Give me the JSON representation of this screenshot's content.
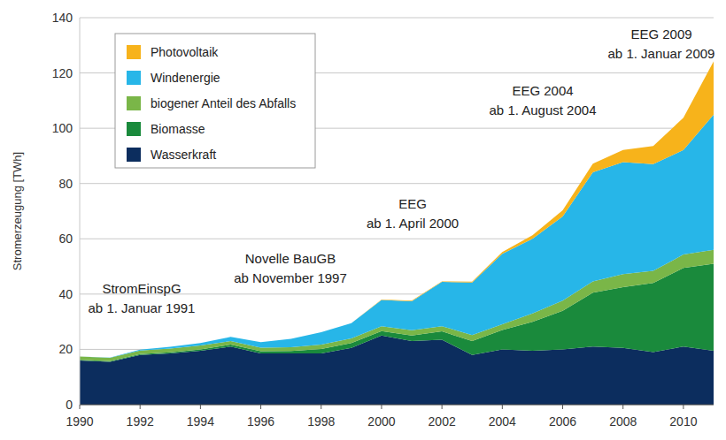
{
  "chart_data": {
    "type": "area",
    "stacked": true,
    "y_label": "Stromerzeugung [TWh]",
    "x": [
      1990,
      1991,
      1992,
      1993,
      1994,
      1995,
      1996,
      1997,
      1998,
      1999,
      2000,
      2001,
      2002,
      2003,
      2004,
      2005,
      2006,
      2007,
      2008,
      2009,
      2010,
      2011
    ],
    "xlim": [
      1990,
      2011
    ],
    "xticks": [
      1990,
      1992,
      1994,
      1996,
      1998,
      2000,
      2002,
      2004,
      2006,
      2008,
      2010
    ],
    "ylim": [
      0,
      140
    ],
    "yticks": [
      0,
      20,
      40,
      60,
      80,
      100,
      120,
      140
    ],
    "grid": true,
    "legend": "top-left",
    "series": [
      {
        "name": "Wasserkraft",
        "color": "#0c2d5e",
        "values": [
          16,
          15.5,
          18,
          18.5,
          19.5,
          21,
          18.5,
          18.5,
          18.5,
          20.5,
          25,
          23,
          23.5,
          18,
          20,
          19.5,
          20,
          21,
          20.5,
          19,
          21,
          19.5
        ]
      },
      {
        "name": "Biomasse",
        "color": "#1a8a3c",
        "values": [
          0.2,
          0.25,
          0.3,
          0.4,
          0.5,
          0.7,
          0.8,
          0.9,
          1.6,
          1.8,
          1.6,
          2,
          3,
          5,
          7,
          10.5,
          14,
          19.5,
          22,
          25,
          28.5,
          31.5
        ]
      },
      {
        "name": "biogener Anteil des Abfalls",
        "color": "#7ab648",
        "values": [
          1.2,
          1.2,
          1.3,
          1.4,
          1.4,
          1.3,
          1.3,
          1.4,
          1.6,
          1.7,
          1.8,
          1.9,
          1.9,
          2.2,
          2.1,
          3,
          3.6,
          4.1,
          4.7,
          4.4,
          4.8,
          5
        ]
      },
      {
        "name": "Windenergie",
        "color": "#27b6e8",
        "values": [
          0,
          0.1,
          0.3,
          0.6,
          0.9,
          1.5,
          2,
          3,
          4.5,
          5.5,
          9.5,
          10.5,
          16,
          19,
          25.5,
          27,
          30.5,
          39.5,
          40.5,
          38.6,
          37.8,
          48.9
        ]
      },
      {
        "name": "Photovoltaik",
        "color": "#f7b31b",
        "values": [
          0,
          0,
          0,
          0,
          0,
          0,
          0,
          0,
          0,
          0,
          0.1,
          0.2,
          0.2,
          0.3,
          0.6,
          1.3,
          2.2,
          3.1,
          4.4,
          6.6,
          11.7,
          19.3
        ]
      }
    ],
    "annotations": [
      {
        "lines": [
          "StromEinspG",
          "ab 1. Januar 1991"
        ]
      },
      {
        "lines": [
          "Novelle BauGB",
          "ab November 1997"
        ]
      },
      {
        "lines": [
          "EEG",
          "ab 1. April 2000"
        ]
      },
      {
        "lines": [
          "EEG 2004",
          "ab 1. August 2004"
        ]
      },
      {
        "lines": [
          "EEG 2009",
          "ab 1. Januar 2009"
        ]
      }
    ]
  }
}
